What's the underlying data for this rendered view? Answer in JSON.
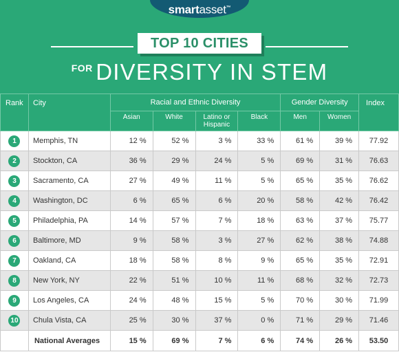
{
  "brand": {
    "name_bold": "smart",
    "name_light": "asset",
    "mark": "™"
  },
  "title": {
    "banner": "TOP 10 CITIES",
    "prefix": "FOR",
    "main": "DIVERSITY IN STEM"
  },
  "colors": {
    "green": "#2aa877",
    "navy": "#135a73",
    "row_alt": "#e6e6e6"
  },
  "table": {
    "headers": {
      "rank": "Rank",
      "city": "City",
      "racial_group": "Racial and Ethnic Diversity",
      "gender_group": "Gender Diversity",
      "index": "Index",
      "asian": "Asian",
      "white": "White",
      "latino": "Latino or Hispanic",
      "black": "Black",
      "men": "Men",
      "women": "Women"
    },
    "rows": [
      {
        "rank": "1",
        "city": "Memphis, TN",
        "asian": "12 %",
        "white": "52 %",
        "latino": "3 %",
        "black": "33 %",
        "men": "61 %",
        "women": "39 %",
        "index": "77.92"
      },
      {
        "rank": "2",
        "city": "Stockton, CA",
        "asian": "36 %",
        "white": "29 %",
        "latino": "24 %",
        "black": "5 %",
        "men": "69 %",
        "women": "31 %",
        "index": "76.63"
      },
      {
        "rank": "3",
        "city": "Sacramento, CA",
        "asian": "27 %",
        "white": "49 %",
        "latino": "11 %",
        "black": "5 %",
        "men": "65 %",
        "women": "35 %",
        "index": "76.62"
      },
      {
        "rank": "4",
        "city": "Washington, DC",
        "asian": "6 %",
        "white": "65 %",
        "latino": "6 %",
        "black": "20 %",
        "men": "58 %",
        "women": "42 %",
        "index": "76.42"
      },
      {
        "rank": "5",
        "city": "Philadelphia, PA",
        "asian": "14 %",
        "white": "57 %",
        "latino": "7 %",
        "black": "18 %",
        "men": "63 %",
        "women": "37 %",
        "index": "75.77"
      },
      {
        "rank": "6",
        "city": "Baltimore, MD",
        "asian": "9 %",
        "white": "58 %",
        "latino": "3 %",
        "black": "27 %",
        "men": "62 %",
        "women": "38 %",
        "index": "74.88"
      },
      {
        "rank": "7",
        "city": "Oakland, CA",
        "asian": "18 %",
        "white": "58 %",
        "latino": "8 %",
        "black": "9 %",
        "men": "65 %",
        "women": "35 %",
        "index": "72.91"
      },
      {
        "rank": "8",
        "city": "New York, NY",
        "asian": "22 %",
        "white": "51 %",
        "latino": "10 %",
        "black": "11 %",
        "men": "68 %",
        "women": "32 %",
        "index": "72.73"
      },
      {
        "rank": "9",
        "city": "Los Angeles, CA",
        "asian": "24 %",
        "white": "48 %",
        "latino": "15 %",
        "black": "5 %",
        "men": "70 %",
        "women": "30 %",
        "index": "71.99"
      },
      {
        "rank": "10",
        "city": "Chula Vista, CA",
        "asian": "25 %",
        "white": "30 %",
        "latino": "37 %",
        "black": "0 %",
        "men": "71 %",
        "women": "29 %",
        "index": "71.46"
      }
    ],
    "averages": {
      "label": "National Averages",
      "asian": "15 %",
      "white": "69 %",
      "latino": "7 %",
      "black": "6 %",
      "men": "74 %",
      "women": "26 %",
      "index": "53.50"
    }
  }
}
